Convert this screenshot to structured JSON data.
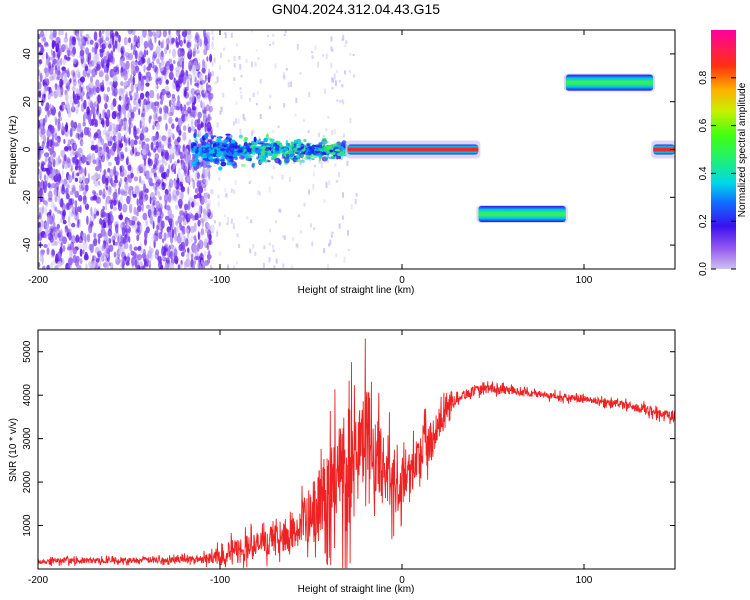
{
  "title": "GN04.2024.312.04.43.G15",
  "colors": {
    "background": "#ffffff",
    "snr_line": "#ee2222",
    "spectrogram_noise": "#6a22e8",
    "spectrogram_peak": "#ff1030"
  },
  "colorbar": {
    "label": "Normalized spectral amplitude",
    "range": [
      0.0,
      1.0
    ],
    "ticks": [
      "0.0",
      "0.2",
      "0.4",
      "0.6",
      "0.8"
    ],
    "tick_values": [
      0.0,
      0.2,
      0.4,
      0.6,
      0.8
    ],
    "colormap": "rainbow (violet-blue-cyan-green-yellow-red-magenta)"
  },
  "chart_data": [
    {
      "type": "heatmap",
      "xlabel": "Height of straight line (km)",
      "ylabel": "Frequency (Hz)",
      "xlim": [
        -200,
        150
      ],
      "ylim": [
        -50,
        50
      ],
      "xticks": [
        -200,
        -100,
        0,
        100
      ],
      "xtick_labels": [
        "-200",
        "-100",
        "0",
        "100"
      ],
      "yticks": [
        -40,
        -20,
        0,
        20,
        40
      ],
      "ytick_labels": [
        "-40",
        "-20",
        "0",
        "20",
        "40"
      ],
      "regions": {
        "noise_floor": {
          "x": [
            -200,
            -110
          ],
          "frequency": [
            -50,
            50
          ],
          "amplitude_range": [
            0.05,
            0.2
          ]
        },
        "transition": {
          "x": [
            -115,
            -30
          ],
          "frequency_center": 0,
          "frequency_spread": 12,
          "amplitude_range": [
            0.2,
            0.5
          ]
        }
      },
      "segments": [
        {
          "x_start": -30,
          "x_end": 42,
          "frequency": 0,
          "amplitude": 0.9
        },
        {
          "x_start": 42,
          "x_end": 90,
          "frequency": -27,
          "amplitude": 0.45
        },
        {
          "x_start": 90,
          "x_end": 138,
          "frequency": 28,
          "amplitude": 0.45
        },
        {
          "x_start": 138,
          "x_end": 150,
          "frequency": 0,
          "amplitude": 0.9
        }
      ]
    },
    {
      "type": "line",
      "xlabel": "Height of straight line (km)",
      "ylabel": "SNR (10 * v/v)",
      "xlim": [
        -200,
        150
      ],
      "ylim": [
        0,
        5500
      ],
      "xticks": [
        -200,
        -100,
        0,
        100
      ],
      "xtick_labels": [
        "-200",
        "-100",
        "0",
        "100"
      ],
      "yticks": [
        1000,
        2000,
        3000,
        4000,
        5000
      ],
      "ytick_labels": [
        "1000",
        "2000",
        "3000",
        "4000",
        "5000"
      ],
      "series": [
        {
          "x": [
            -200,
            -150,
            -110,
            -100,
            -90,
            -80,
            -70,
            -60,
            -50,
            -40,
            -30,
            -25,
            -20,
            -15,
            -10,
            -5,
            0,
            5,
            10,
            15,
            20,
            25,
            30,
            40,
            50,
            60,
            70,
            80,
            90,
            100,
            110,
            120,
            130,
            140,
            150
          ],
          "values": [
            180,
            200,
            230,
            300,
            420,
            550,
            650,
            800,
            1200,
            1800,
            2400,
            2900,
            3300,
            2600,
            2300,
            2000,
            2000,
            2300,
            2600,
            2900,
            3300,
            3700,
            3950,
            4100,
            4150,
            4100,
            4050,
            4000,
            3950,
            3900,
            3850,
            3800,
            3700,
            3600,
            3500
          ],
          "envelope_upper": [
            300,
            320,
            380,
            700,
            1000,
            1100,
            1200,
            1500,
            2500,
            3600,
            5500,
            4200,
            5500,
            4300,
            3800,
            3500,
            3000,
            3300,
            3600,
            3900,
            4000,
            4100,
            4200,
            4300,
            4350,
            4250,
            4200,
            4150,
            4100,
            4050,
            4000,
            3950,
            3900,
            3800,
            3700
          ]
        }
      ]
    }
  ]
}
